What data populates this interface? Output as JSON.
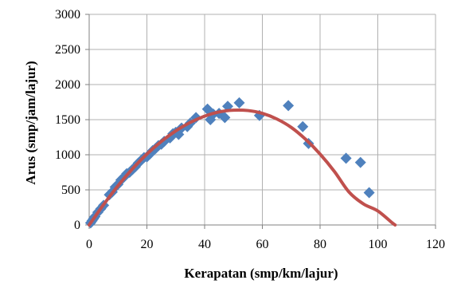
{
  "chart_data": {
    "type": "scatter",
    "title": "",
    "xlabel": "Kerapatan (smp/km/lajur)",
    "ylabel": "Arus (smp/jam/lajur)",
    "xlim": [
      0,
      120
    ],
    "ylim": [
      0,
      3000
    ],
    "x_ticks": [
      "0",
      "20",
      "40",
      "60",
      "80",
      "100",
      "120"
    ],
    "y_ticks": [
      "0",
      "500",
      "1000",
      "1500",
      "2000",
      "2500",
      "3000"
    ],
    "grid": true,
    "legend": "none",
    "series": [
      {
        "kind": "scatter",
        "marker": "diamond",
        "color": "#4f81bd",
        "points": [
          [
            0.5,
            30
          ],
          [
            1,
            60
          ],
          [
            1.5,
            90
          ],
          [
            2,
            120
          ],
          [
            3,
            180
          ],
          [
            4,
            230
          ],
          [
            5,
            280
          ],
          [
            7,
            430
          ],
          [
            8,
            470
          ],
          [
            9,
            540
          ],
          [
            10,
            580
          ],
          [
            11,
            640
          ],
          [
            12,
            680
          ],
          [
            13,
            730
          ],
          [
            14,
            750
          ],
          [
            15,
            790
          ],
          [
            16,
            830
          ],
          [
            17,
            880
          ],
          [
            18,
            920
          ],
          [
            19,
            960
          ],
          [
            20,
            970
          ],
          [
            21,
            1010
          ],
          [
            22,
            1060
          ],
          [
            23,
            1090
          ],
          [
            24,
            1130
          ],
          [
            25,
            1150
          ],
          [
            26,
            1190
          ],
          [
            28,
            1240
          ],
          [
            29,
            1300
          ],
          [
            30,
            1320
          ],
          [
            31,
            1290
          ],
          [
            32,
            1380
          ],
          [
            34,
            1400
          ],
          [
            35,
            1450
          ],
          [
            37,
            1530
          ],
          [
            41,
            1650
          ],
          [
            42,
            1500
          ],
          [
            43,
            1580
          ],
          [
            45,
            1590
          ],
          [
            47,
            1530
          ],
          [
            48,
            1690
          ],
          [
            52,
            1740
          ],
          [
            59,
            1560
          ],
          [
            69,
            1700
          ],
          [
            74,
            1400
          ],
          [
            76,
            1160
          ],
          [
            89,
            950
          ],
          [
            94,
            890
          ],
          [
            97,
            460
          ]
        ]
      },
      {
        "kind": "line",
        "color": "#c0504d",
        "points": [
          [
            0,
            0
          ],
          [
            5,
            290
          ],
          [
            10,
            560
          ],
          [
            15,
            800
          ],
          [
            20,
            1010
          ],
          [
            25,
            1190
          ],
          [
            30,
            1340
          ],
          [
            35,
            1460
          ],
          [
            40,
            1550
          ],
          [
            45,
            1610
          ],
          [
            50,
            1635
          ],
          [
            55,
            1630
          ],
          [
            60,
            1590
          ],
          [
            65,
            1510
          ],
          [
            70,
            1390
          ],
          [
            75,
            1220
          ],
          [
            80,
            1010
          ],
          [
            85,
            760
          ],
          [
            90,
            470
          ],
          [
            95,
            300
          ],
          [
            100,
            200
          ],
          [
            105,
            30
          ],
          [
            106,
            0
          ]
        ]
      }
    ]
  }
}
